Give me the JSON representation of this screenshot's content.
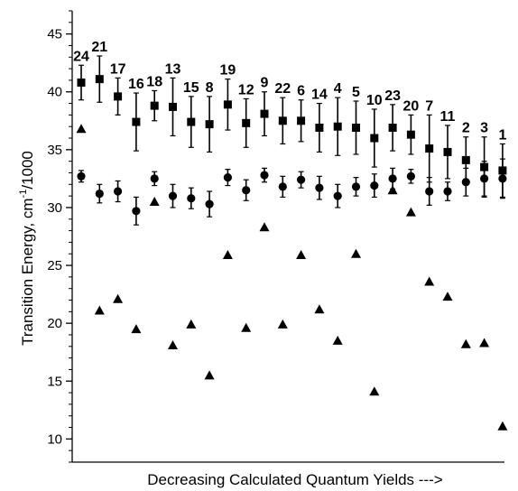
{
  "chart_data": {
    "type": "scatter",
    "title": "",
    "xlabel": "Decreasing Calculated Quantum Yields --->",
    "ylabel": "Transition Energy, cm",
    "ylabel_sup": "-1",
    "ylabel_suffix": "/1000",
    "ylim": [
      8,
      47
    ],
    "yticks": [
      10,
      15,
      20,
      25,
      30,
      35,
      40,
      45
    ],
    "x": [
      1,
      2,
      3,
      4,
      5,
      6,
      7,
      8,
      9,
      10,
      11,
      12,
      13,
      14,
      15,
      16,
      17,
      18,
      19,
      20,
      21,
      22,
      23,
      24
    ],
    "point_labels": [
      "24",
      "21",
      "17",
      "16",
      "18",
      "13",
      "15",
      "8",
      "19",
      "12",
      "9",
      "22",
      "6",
      "14",
      "4",
      "5",
      "10",
      "23",
      "20",
      "7",
      "11",
      "2",
      "3",
      "1"
    ],
    "series": [
      {
        "marker": "square",
        "values": [
          40.8,
          41.1,
          39.6,
          37.4,
          38.8,
          38.7,
          37.4,
          37.2,
          38.9,
          37.3,
          38.1,
          37.5,
          37.5,
          36.9,
          37.0,
          36.9,
          36.0,
          36.9,
          36.3,
          35.1,
          34.8,
          34.1,
          33.5,
          33.2
        ],
        "errors": [
          1.5,
          2.0,
          1.6,
          2.5,
          1.3,
          2.5,
          2.2,
          2.4,
          2.2,
          2.1,
          1.9,
          2.0,
          1.8,
          2.1,
          2.5,
          2.3,
          2.5,
          2.0,
          1.7,
          2.9,
          2.3,
          2.0,
          2.6,
          2.3
        ]
      },
      {
        "marker": "circle",
        "values": [
          32.7,
          31.2,
          31.4,
          29.7,
          32.5,
          31.0,
          30.8,
          30.3,
          32.6,
          31.5,
          32.8,
          31.8,
          32.4,
          31.7,
          31.0,
          31.8,
          31.9,
          32.5,
          32.7,
          31.4,
          31.4,
          32.2,
          32.5,
          32.5
        ],
        "errors": [
          0.5,
          0.8,
          0.9,
          1.2,
          0.6,
          1.0,
          0.9,
          1.1,
          0.7,
          0.9,
          0.6,
          0.9,
          0.7,
          1.0,
          1.0,
          0.8,
          1.0,
          0.9,
          0.6,
          1.2,
          0.8,
          1.2,
          1.5,
          1.7
        ]
      },
      {
        "marker": "triangle",
        "values": [
          36.8,
          21.1,
          22.1,
          19.5,
          30.5,
          18.1,
          19.9,
          15.5,
          25.9,
          19.6,
          28.3,
          19.9,
          25.9,
          21.2,
          18.5,
          26.0,
          14.1,
          31.5,
          29.6,
          23.6,
          22.3,
          18.2,
          18.3,
          11.1
        ]
      }
    ]
  }
}
